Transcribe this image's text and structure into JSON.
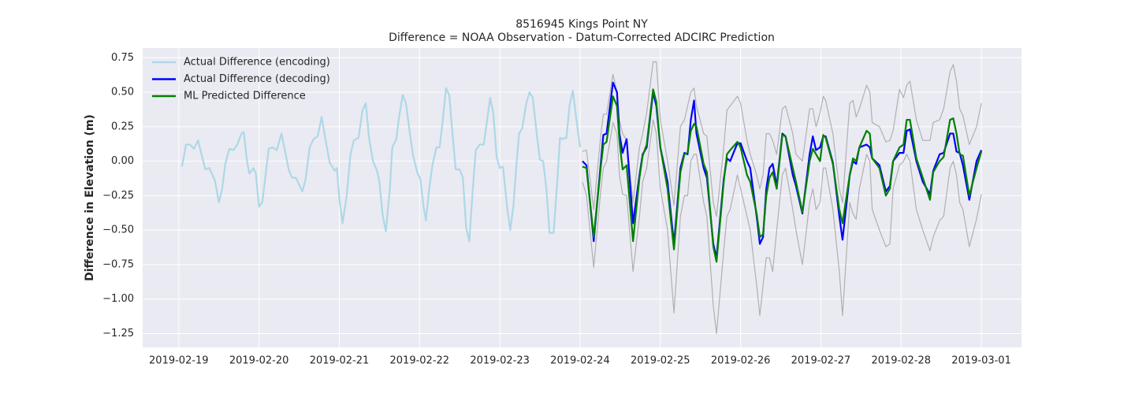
{
  "chart_data": {
    "type": "line",
    "title": "8516945 Kings Point NY",
    "subtitle": "Difference = NOAA Observation - Datum-Corrected ADCIRC Prediction",
    "y_label": "Difference in Elevation (m)",
    "xlim": [
      -0.45,
      10.5
    ],
    "xticks": [
      {
        "value": 0,
        "label": "2019-02-19"
      },
      {
        "value": 1,
        "label": "2019-02-20"
      },
      {
        "value": 2,
        "label": "2019-02-21"
      },
      {
        "value": 3,
        "label": "2019-02-22"
      },
      {
        "value": 4,
        "label": "2019-02-23"
      },
      {
        "value": 5,
        "label": "2019-02-24"
      },
      {
        "value": 6,
        "label": "2019-02-25"
      },
      {
        "value": 7,
        "label": "2019-02-26"
      },
      {
        "value": 8,
        "label": "2019-02-27"
      },
      {
        "value": 9,
        "label": "2019-02-28"
      },
      {
        "value": 10,
        "label": "2019-03-01"
      }
    ],
    "ylim": [
      -1.35,
      0.82
    ],
    "yticks": [
      {
        "value": -1.25,
        "label": "−1.25"
      },
      {
        "value": -1.0,
        "label": "−1.00"
      },
      {
        "value": -0.75,
        "label": "−0.75"
      },
      {
        "value": -0.5,
        "label": "−0.50"
      },
      {
        "value": -0.25,
        "label": "−0.25"
      },
      {
        "value": 0,
        "label": "0.00"
      },
      {
        "value": 0.25,
        "label": "0.25"
      },
      {
        "value": 0.5,
        "label": "0.50"
      },
      {
        "value": 0.75,
        "label": "0.75"
      }
    ],
    "grid": true,
    "legend_position": "upper-left",
    "series": [
      {
        "color": "#b0b0b0",
        "x": [
          5.03,
          5.08,
          5.17,
          5.26,
          5.29,
          5.33,
          5.41,
          5.46,
          5.49,
          5.53,
          5.58,
          5.66,
          5.74,
          5.78,
          5.83,
          5.91,
          5.95,
          6.0,
          6.09,
          6.17,
          6.25,
          6.3,
          6.34,
          6.38,
          6.42,
          6.45,
          6.54,
          6.58,
          6.66,
          6.7,
          6.79,
          6.83,
          6.87,
          6.96,
          7.0,
          7.08,
          7.12,
          7.2,
          7.24,
          7.28,
          7.32,
          7.36,
          7.4,
          7.45,
          7.52,
          7.56,
          7.65,
          7.69,
          7.77,
          7.86,
          7.9,
          7.94,
          7.99,
          8.03,
          8.06,
          8.15,
          8.23,
          8.27,
          8.36,
          8.4,
          8.44,
          8.48,
          8.57,
          8.61,
          8.64,
          8.73,
          8.81,
          8.86,
          8.9,
          8.98,
          9.03,
          9.07,
          9.11,
          9.19,
          9.27,
          9.36,
          9.4,
          9.48,
          9.53,
          9.61,
          9.65,
          9.69,
          9.73,
          9.77,
          9.85,
          9.94,
          10.0
        ],
        "values": [
          0.07,
          0.08,
          -0.35,
          0.2,
          0.34,
          0.34,
          0.63,
          0.5,
          0.3,
          0.2,
          0.15,
          -0.3,
          0.1,
          0.2,
          0.35,
          0.72,
          0.72,
          0.3,
          0.0,
          -0.32,
          0.25,
          0.3,
          0.4,
          0.5,
          0.53,
          0.4,
          0.2,
          0.18,
          -0.3,
          -0.4,
          0.1,
          0.37,
          0.4,
          0.47,
          0.42,
          0.15,
          0.05,
          -0.1,
          -0.2,
          -0.1,
          0.2,
          0.2,
          0.15,
          0.05,
          0.38,
          0.4,
          0.2,
          0.05,
          0.0,
          0.38,
          0.38,
          0.25,
          0.35,
          0.47,
          0.44,
          0.2,
          -0.2,
          -0.3,
          0.42,
          0.44,
          0.32,
          0.38,
          0.55,
          0.5,
          0.28,
          0.25,
          0.14,
          0.15,
          0.22,
          0.52,
          0.46,
          0.55,
          0.58,
          0.3,
          0.15,
          0.15,
          0.28,
          0.3,
          0.38,
          0.65,
          0.7,
          0.58,
          0.38,
          0.33,
          0.12,
          0.25,
          0.42
        ]
      },
      {
        "color": "#b0b0b0",
        "x": [
          5.03,
          5.08,
          5.17,
          5.26,
          5.29,
          5.33,
          5.41,
          5.46,
          5.49,
          5.53,
          5.58,
          5.66,
          5.74,
          5.78,
          5.83,
          5.91,
          5.95,
          6.0,
          6.09,
          6.17,
          6.25,
          6.3,
          6.34,
          6.38,
          6.42,
          6.45,
          6.54,
          6.58,
          6.66,
          6.7,
          6.79,
          6.83,
          6.87,
          6.96,
          7.0,
          7.08,
          7.12,
          7.2,
          7.24,
          7.28,
          7.32,
          7.36,
          7.4,
          7.45,
          7.52,
          7.56,
          7.65,
          7.69,
          7.77,
          7.86,
          7.9,
          7.94,
          7.99,
          8.03,
          8.06,
          8.15,
          8.23,
          8.27,
          8.36,
          8.4,
          8.44,
          8.48,
          8.57,
          8.61,
          8.64,
          8.73,
          8.81,
          8.86,
          8.9,
          8.98,
          9.03,
          9.07,
          9.11,
          9.19,
          9.27,
          9.36,
          9.4,
          9.48,
          9.53,
          9.61,
          9.65,
          9.69,
          9.73,
          9.77,
          9.85,
          9.94,
          10.0
        ],
        "values": [
          -0.15,
          -0.25,
          -0.77,
          -0.2,
          -0.05,
          0.0,
          0.28,
          0.2,
          -0.1,
          -0.24,
          -0.25,
          -0.8,
          -0.4,
          -0.15,
          -0.05,
          0.3,
          0.2,
          -0.2,
          -0.5,
          -1.1,
          -0.4,
          -0.25,
          -0.25,
          0.0,
          0.05,
          0.05,
          -0.3,
          -0.4,
          -1.05,
          -1.25,
          -0.65,
          -0.4,
          -0.35,
          -0.1,
          -0.2,
          -0.4,
          -0.5,
          -0.9,
          -1.12,
          -0.9,
          -0.7,
          -0.7,
          -0.8,
          -0.5,
          -0.1,
          -0.05,
          -0.35,
          -0.5,
          -0.75,
          -0.3,
          -0.2,
          -0.35,
          -0.3,
          -0.05,
          -0.05,
          -0.35,
          -0.8,
          -1.12,
          -0.3,
          -0.38,
          -0.42,
          -0.2,
          0.05,
          0.0,
          -0.35,
          -0.5,
          -0.62,
          -0.6,
          -0.2,
          -0.03,
          0.0,
          0.05,
          0.0,
          -0.35,
          -0.5,
          -0.65,
          -0.55,
          -0.43,
          -0.4,
          -0.05,
          0.0,
          -0.1,
          -0.3,
          -0.35,
          -0.62,
          -0.42,
          -0.24
        ]
      },
      {
        "name": "Actual Difference (encoding)",
        "color": "#add8e6",
        "x": [
          0.04,
          0.09,
          0.14,
          0.19,
          0.24,
          0.33,
          0.38,
          0.45,
          0.5,
          0.54,
          0.58,
          0.63,
          0.68,
          0.73,
          0.78,
          0.81,
          0.85,
          0.88,
          0.93,
          0.96,
          1.0,
          1.04,
          1.09,
          1.12,
          1.17,
          1.22,
          1.28,
          1.37,
          1.41,
          1.46,
          1.54,
          1.58,
          1.63,
          1.68,
          1.73,
          1.78,
          1.83,
          1.88,
          1.94,
          1.97,
          2.0,
          2.04,
          2.09,
          2.14,
          2.18,
          2.24,
          2.29,
          2.33,
          2.37,
          2.42,
          2.47,
          2.5,
          2.54,
          2.58,
          2.63,
          2.66,
          2.71,
          2.74,
          2.79,
          2.83,
          2.88,
          2.92,
          2.97,
          3.01,
          3.05,
          3.08,
          3.12,
          3.16,
          3.21,
          3.25,
          3.29,
          3.33,
          3.37,
          3.41,
          3.45,
          3.5,
          3.54,
          3.58,
          3.62,
          3.66,
          3.7,
          3.75,
          3.8,
          3.88,
          3.92,
          3.96,
          4.0,
          4.04,
          4.09,
          4.13,
          4.17,
          4.21,
          4.24,
          4.28,
          4.33,
          4.37,
          4.41,
          4.46,
          4.5,
          4.54,
          4.58,
          4.62,
          4.67,
          4.71,
          4.75,
          4.78,
          4.83,
          4.87,
          4.91,
          4.95,
          5.0
        ],
        "values": [
          -0.04,
          0.12,
          0.12,
          0.09,
          0.15,
          -0.06,
          -0.05,
          -0.14,
          -0.3,
          -0.2,
          -0.02,
          0.09,
          0.08,
          0.12,
          0.2,
          0.21,
          0.0,
          -0.09,
          -0.05,
          -0.09,
          -0.33,
          -0.3,
          -0.06,
          0.09,
          0.1,
          0.08,
          0.2,
          -0.06,
          -0.12,
          -0.12,
          -0.22,
          -0.13,
          0.1,
          0.16,
          0.18,
          0.32,
          0.15,
          -0.01,
          -0.07,
          -0.05,
          -0.27,
          -0.45,
          -0.26,
          0.05,
          0.15,
          0.17,
          0.37,
          0.42,
          0.17,
          0.0,
          -0.07,
          -0.15,
          -0.39,
          -0.51,
          -0.2,
          0.1,
          0.16,
          0.3,
          0.48,
          0.42,
          0.2,
          0.04,
          -0.08,
          -0.13,
          -0.33,
          -0.43,
          -0.2,
          -0.03,
          0.1,
          0.1,
          0.3,
          0.53,
          0.48,
          0.2,
          -0.06,
          -0.06,
          -0.12,
          -0.48,
          -0.58,
          -0.23,
          0.08,
          0.12,
          0.12,
          0.46,
          0.34,
          0.03,
          -0.05,
          -0.04,
          -0.33,
          -0.5,
          -0.32,
          0.0,
          0.2,
          0.24,
          0.42,
          0.5,
          0.46,
          0.2,
          0.01,
          0.0,
          -0.2,
          -0.52,
          -0.52,
          -0.2,
          0.17,
          0.16,
          0.17,
          0.41,
          0.51,
          0.32,
          0.1
        ]
      },
      {
        "name": "Actual Difference (decoding)",
        "color": "#0000ff",
        "x": [
          5.03,
          5.08,
          5.17,
          5.26,
          5.29,
          5.33,
          5.41,
          5.46,
          5.49,
          5.53,
          5.58,
          5.66,
          5.74,
          5.78,
          5.83,
          5.91,
          5.95,
          6.0,
          6.09,
          6.17,
          6.25,
          6.3,
          6.34,
          6.38,
          6.42,
          6.45,
          6.54,
          6.58,
          6.66,
          6.7,
          6.79,
          6.83,
          6.87,
          6.96,
          7.0,
          7.08,
          7.12,
          7.2,
          7.24,
          7.28,
          7.32,
          7.36,
          7.4,
          7.45,
          7.52,
          7.56,
          7.65,
          7.69,
          7.77,
          7.86,
          7.9,
          7.94,
          7.99,
          8.03,
          8.06,
          8.15,
          8.23,
          8.27,
          8.36,
          8.4,
          8.44,
          8.48,
          8.57,
          8.61,
          8.64,
          8.73,
          8.81,
          8.86,
          8.9,
          8.98,
          9.03,
          9.07,
          9.11,
          9.19,
          9.27,
          9.36,
          9.4,
          9.48,
          9.53,
          9.61,
          9.65,
          9.69,
          9.73,
          9.77,
          9.85,
          9.94,
          10.0
        ],
        "values": [
          0.0,
          -0.03,
          -0.58,
          0.0,
          0.19,
          0.2,
          0.57,
          0.5,
          0.2,
          0.06,
          0.16,
          -0.45,
          -0.1,
          0.05,
          0.1,
          0.5,
          0.4,
          0.1,
          -0.15,
          -0.6,
          -0.05,
          0.06,
          0.05,
          0.3,
          0.44,
          0.2,
          -0.05,
          -0.12,
          -0.6,
          -0.7,
          -0.13,
          0.02,
          0.0,
          0.13,
          0.13,
          0.0,
          -0.05,
          -0.4,
          -0.6,
          -0.55,
          -0.2,
          -0.05,
          -0.02,
          -0.18,
          0.2,
          0.18,
          -0.1,
          -0.18,
          -0.38,
          0.05,
          0.18,
          0.08,
          0.1,
          0.18,
          0.18,
          -0.01,
          -0.4,
          -0.57,
          -0.1,
          0.0,
          -0.02,
          0.1,
          0.12,
          0.1,
          0.02,
          -0.03,
          -0.22,
          -0.18,
          0.0,
          0.06,
          0.06,
          0.22,
          0.23,
          0.0,
          -0.15,
          -0.24,
          -0.07,
          0.05,
          0.06,
          0.2,
          0.2,
          0.07,
          0.06,
          -0.03,
          -0.28,
          0.0,
          0.08
        ]
      },
      {
        "name": "ML Predicted Difference",
        "color": "#008000",
        "x": [
          5.03,
          5.08,
          5.17,
          5.26,
          5.29,
          5.33,
          5.41,
          5.46,
          5.49,
          5.53,
          5.58,
          5.66,
          5.74,
          5.78,
          5.83,
          5.91,
          5.95,
          6.0,
          6.09,
          6.17,
          6.25,
          6.3,
          6.34,
          6.38,
          6.42,
          6.45,
          6.54,
          6.58,
          6.66,
          6.7,
          6.79,
          6.83,
          6.87,
          6.96,
          7.0,
          7.08,
          7.12,
          7.2,
          7.24,
          7.28,
          7.32,
          7.36,
          7.4,
          7.45,
          7.52,
          7.56,
          7.65,
          7.69,
          7.77,
          7.86,
          7.9,
          7.94,
          7.99,
          8.03,
          8.06,
          8.15,
          8.23,
          8.27,
          8.36,
          8.4,
          8.44,
          8.48,
          8.57,
          8.61,
          8.64,
          8.73,
          8.81,
          8.86,
          8.9,
          8.98,
          9.03,
          9.07,
          9.11,
          9.19,
          9.27,
          9.36,
          9.4,
          9.48,
          9.53,
          9.61,
          9.65,
          9.69,
          9.73,
          9.77,
          9.85,
          9.94,
          10.0
        ],
        "values": [
          -0.04,
          -0.05,
          -0.55,
          -0.03,
          0.12,
          0.14,
          0.47,
          0.4,
          0.15,
          -0.06,
          -0.03,
          -0.58,
          -0.12,
          0.04,
          0.12,
          0.52,
          0.43,
          0.1,
          -0.2,
          -0.64,
          -0.08,
          0.05,
          0.06,
          0.22,
          0.27,
          0.25,
          -0.02,
          -0.08,
          -0.62,
          -0.73,
          -0.15,
          0.05,
          0.08,
          0.14,
          0.1,
          -0.1,
          -0.15,
          -0.38,
          -0.55,
          -0.53,
          -0.25,
          -0.12,
          -0.08,
          -0.2,
          0.19,
          0.18,
          -0.05,
          -0.15,
          -0.37,
          0.0,
          0.09,
          0.05,
          0.0,
          0.19,
          0.17,
          -0.02,
          -0.35,
          -0.45,
          -0.1,
          0.02,
          0.0,
          0.1,
          0.22,
          0.2,
          0.02,
          -0.05,
          -0.25,
          -0.2,
          0.0,
          0.1,
          0.12,
          0.3,
          0.3,
          0.02,
          -0.12,
          -0.28,
          -0.08,
          0.0,
          0.03,
          0.3,
          0.31,
          0.2,
          0.05,
          0.04,
          -0.25,
          -0.05,
          0.07
        ]
      }
    ]
  }
}
